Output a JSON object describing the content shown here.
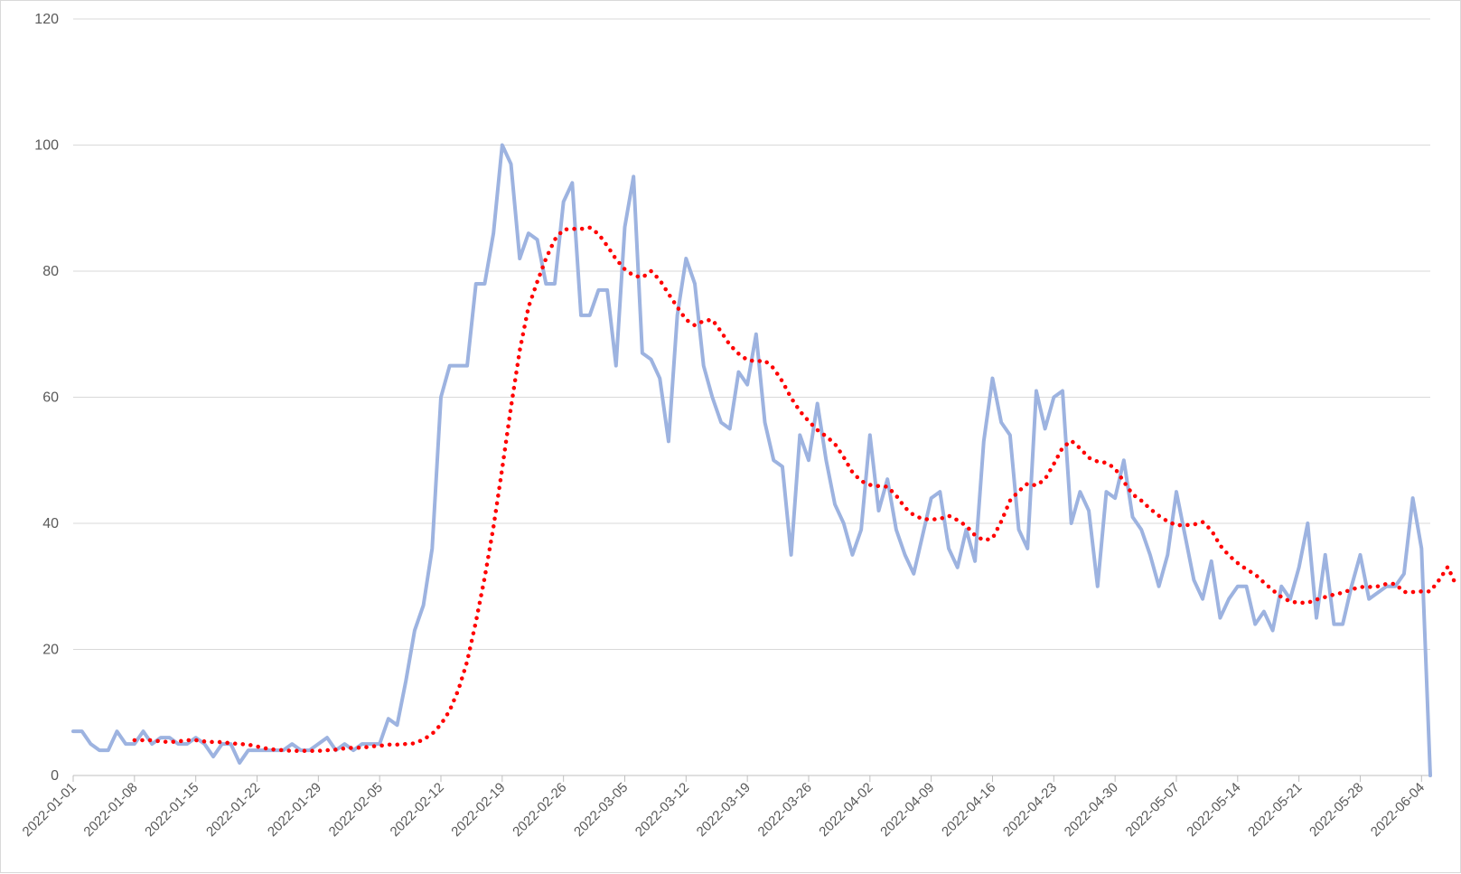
{
  "chart_data": {
    "type": "line",
    "title": "",
    "xlabel": "",
    "ylabel": "",
    "ylim": [
      0,
      120
    ],
    "y_ticks": [
      0,
      20,
      40,
      60,
      80,
      100,
      120
    ],
    "x_start": "2022-01-01",
    "x_ticks": [
      "2022-01-01",
      "2022-01-08",
      "2022-01-15",
      "2022-01-22",
      "2022-01-29",
      "2022-02-05",
      "2022-02-12",
      "2022-02-19",
      "2022-02-26",
      "2022-03-05",
      "2022-03-12",
      "2022-03-19",
      "2022-03-26",
      "2022-04-02",
      "2022-04-09",
      "2022-04-16",
      "2022-04-23",
      "2022-04-30",
      "2022-05-07",
      "2022-05-14",
      "2022-05-21",
      "2022-05-28",
      "2022-06-04"
    ],
    "grid": true,
    "legend": "none",
    "colors": {
      "series": "#9db3e0",
      "trend": "#ff0000",
      "grid": "#d9d9d9",
      "axis": "#bfbfbf"
    },
    "series": [
      {
        "style": "solid",
        "values": [
          7,
          7,
          5,
          4,
          4,
          7,
          5,
          5,
          7,
          5,
          6,
          6,
          5,
          5,
          6,
          5,
          3,
          5,
          5,
          2,
          4,
          4,
          4,
          4,
          4,
          5,
          4,
          4,
          5,
          6,
          4,
          5,
          4,
          5,
          5,
          5,
          9,
          8,
          15,
          23,
          27,
          36,
          60,
          65,
          65,
          65,
          78,
          78,
          86,
          100,
          97,
          82,
          86,
          85,
          78,
          78,
          91,
          94,
          73,
          73,
          77,
          77,
          65,
          87,
          95,
          67,
          66,
          63,
          53,
          73,
          82,
          78,
          65,
          60,
          56,
          55,
          64,
          62,
          70,
          56,
          50,
          49,
          35,
          54,
          50,
          59,
          50,
          43,
          40,
          35,
          39,
          54,
          42,
          47,
          39,
          35,
          32,
          38,
          44,
          45,
          36,
          33,
          39,
          34,
          53,
          63,
          56,
          54,
          39,
          36,
          61,
          55,
          60,
          61,
          40,
          45,
          42,
          30,
          45,
          44,
          50,
          41,
          39,
          35,
          30,
          35,
          45,
          38,
          31,
          28,
          34,
          25,
          28,
          30,
          30,
          24,
          26,
          23,
          30,
          28,
          33,
          40,
          25,
          35,
          24,
          24,
          30,
          35,
          28,
          29,
          30,
          30,
          32,
          44,
          36,
          0
        ]
      },
      {
        "style": "dotted",
        "start_index": 7,
        "values": [
          5.6,
          5.6,
          5.6,
          5.4,
          5.3,
          5.4,
          5.6,
          5.6,
          5.4,
          5.3,
          5.3,
          5.1,
          5.0,
          4.9,
          4.6,
          4.3,
          4.1,
          4.0,
          3.9,
          3.9,
          3.9,
          3.9,
          4.0,
          4.1,
          4.3,
          4.4,
          4.4,
          4.6,
          4.7,
          4.9,
          4.9,
          5.0,
          5.1,
          5.7,
          6.6,
          8.1,
          10.3,
          13.6,
          18.1,
          24.4,
          31.4,
          39.4,
          48.7,
          58.4,
          67.4,
          74.3,
          78.3,
          82.0,
          85.0,
          86.6,
          86.7,
          86.7,
          86.9,
          85.9,
          84.0,
          81.9,
          80.3,
          79.3,
          79.0,
          80.0,
          78.6,
          76.4,
          74.3,
          72.3,
          71.4,
          72.1,
          72.3,
          70.4,
          68.3,
          66.9,
          65.9,
          65.7,
          65.8,
          64.6,
          62.5,
          59.9,
          57.8,
          56.2,
          54.8,
          53.8,
          52.6,
          50.5,
          48.1,
          46.7,
          46.1,
          45.9,
          45.8,
          44.4,
          42.5,
          41.3,
          40.7,
          40.6,
          40.7,
          41.2,
          40.5,
          39.6,
          38.1,
          37.3,
          37.6,
          40.3,
          43.6,
          45.1,
          46.3,
          46.0,
          47.0,
          49.4,
          52.0,
          53.1,
          51.9,
          50.4,
          49.8,
          49.6,
          48.7,
          46.6,
          44.6,
          43.6,
          42.3,
          41.2,
          40.3,
          39.7,
          39.7,
          39.8,
          40.2,
          38.9,
          36.5,
          34.9,
          33.7,
          32.7,
          31.9,
          30.6,
          29.4,
          28.3,
          27.6,
          27.4,
          27.4,
          27.9,
          28.3,
          28.7,
          29.0,
          29.5,
          29.9,
          29.9,
          30.0,
          30.4,
          30.4,
          29.1,
          29.1,
          29.2,
          29.2,
          31.0,
          33.1,
          30.0
        ]
      }
    ]
  }
}
